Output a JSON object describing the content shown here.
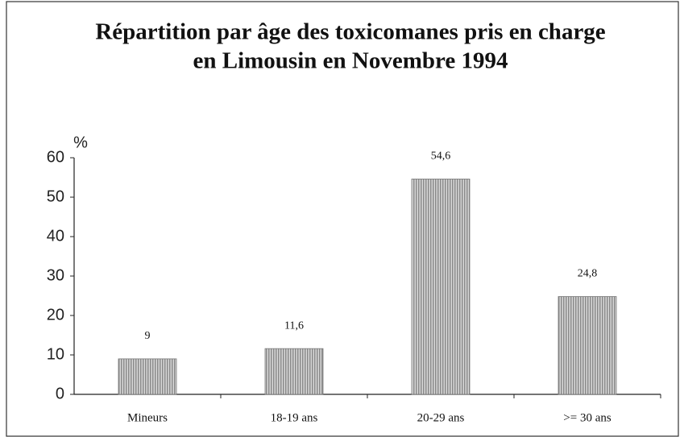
{
  "chart_data": {
    "type": "bar",
    "title": [
      "Répartition par âge des toxicomanes pris en charge",
      "en Limousin en Novembre 1994"
    ],
    "y_label": "%",
    "categories": [
      "Mineurs",
      "18-19 ans",
      "20-29 ans",
      ">= 30 ans"
    ],
    "values": [
      9,
      11.6,
      54.6,
      24.8
    ],
    "value_labels": [
      "9",
      "11,6",
      "54,6",
      "24,8"
    ],
    "color": "#a9a9a9",
    "ylim": [
      0,
      60
    ],
    "yticks": [
      0,
      10,
      20,
      30,
      40,
      50,
      60
    ]
  }
}
